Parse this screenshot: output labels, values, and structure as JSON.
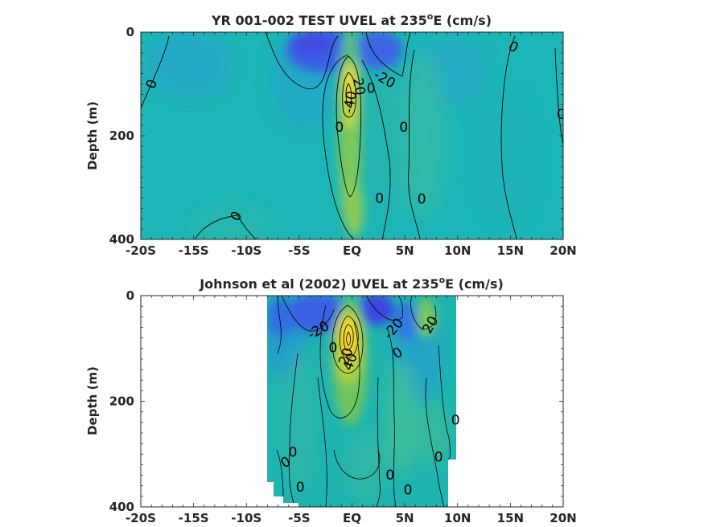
{
  "colors": {
    "background": "#1cb6b6",
    "strong_westward": "#3a4fe6",
    "moderate_westward": "#2f8ae0",
    "moderate_eastward": "#77c45a",
    "strong_eastward": "#f5e02a",
    "frame": "#262626"
  },
  "chart_data": [
    {
      "type": "heatmap",
      "title": "YR 001-002 TEST UVEL at 235",
      "title_sup": "o",
      "title_tail": "E (cm/s)",
      "xlabel": "",
      "ylabel": "Depth (m)",
      "xlim": [
        -20,
        20
      ],
      "ylim": [
        400,
        0
      ],
      "x_ticks": [
        -20,
        -15,
        -10,
        -5,
        0,
        5,
        10,
        15,
        20
      ],
      "x_tick_labels": [
        "-20S",
        "-15S",
        "-10S",
        "-5S",
        "EQ",
        "5N",
        "10N",
        "15N",
        "20N"
      ],
      "y_ticks": [
        0,
        200,
        400
      ],
      "y_tick_labels": [
        "0",
        "200",
        "400"
      ],
      "data_extent": [
        -20,
        20
      ],
      "contour_labels": [
        {
          "lat": -19,
          "depth": 100,
          "text": "0",
          "rot": -70
        },
        {
          "lat": -11,
          "depth": 355,
          "text": "0",
          "rot": -60
        },
        {
          "lat": -1.2,
          "depth": 183,
          "text": "0",
          "rot": 0
        },
        {
          "lat": -0.2,
          "depth": 135,
          "text": "-40",
          "rot": -80
        },
        {
          "lat": 0.7,
          "depth": 105,
          "text": "20",
          "rot": 80
        },
        {
          "lat": 1.8,
          "depth": 108,
          "text": "0",
          "rot": 0
        },
        {
          "lat": 3.1,
          "depth": 90,
          "text": "-20",
          "rot": 30
        },
        {
          "lat": 4.9,
          "depth": 183,
          "text": "0",
          "rot": 0
        },
        {
          "lat": 2.6,
          "depth": 320,
          "text": "0",
          "rot": 0
        },
        {
          "lat": 6.6,
          "depth": 322,
          "text": "0",
          "rot": 0
        },
        {
          "lat": 15.3,
          "depth": 28,
          "text": "0",
          "rot": 30
        },
        {
          "lat": 19.8,
          "depth": 158,
          "text": "0",
          "rot": 0
        }
      ]
    },
    {
      "type": "heatmap",
      "title": "Johnson et al (2002) UVEL at 235",
      "title_sup": "o",
      "title_tail": "E (cm/s)",
      "xlabel": "",
      "ylabel": "Depth (m)",
      "xlim": [
        -20,
        20
      ],
      "ylim": [
        400,
        0
      ],
      "x_ticks": [
        -20,
        -15,
        -10,
        -5,
        0,
        5,
        10,
        15,
        20
      ],
      "x_tick_labels": [
        "-20S",
        "-15S",
        "-10S",
        "-5S",
        "EQ",
        "5N",
        "10N",
        "15N",
        "20N"
      ],
      "y_ticks": [
        0,
        200,
        400
      ],
      "y_tick_labels": [
        "0",
        "200",
        "400"
      ],
      "data_extent": [
        -8,
        10
      ],
      "contour_labels": [
        {
          "lat": -3.2,
          "depth": 65,
          "text": "-20",
          "rot": -30
        },
        {
          "lat": -1.8,
          "depth": 98,
          "text": "0",
          "rot": 0
        },
        {
          "lat": -0.6,
          "depth": 115,
          "text": "20",
          "rot": -70
        },
        {
          "lat": -0.2,
          "depth": 125,
          "text": "40",
          "rot": -70
        },
        {
          "lat": 3.9,
          "depth": 62,
          "text": "-20",
          "rot": -50
        },
        {
          "lat": 4.3,
          "depth": 108,
          "text": "0",
          "rot": -30
        },
        {
          "lat": 7.4,
          "depth": 55,
          "text": "20",
          "rot": -60
        },
        {
          "lat": 9.8,
          "depth": 235,
          "text": "0",
          "rot": 0
        },
        {
          "lat": -6.3,
          "depth": 315,
          "text": "0",
          "rot": -30
        },
        {
          "lat": -5.6,
          "depth": 296,
          "text": "0",
          "rot": 0
        },
        {
          "lat": -4.9,
          "depth": 362,
          "text": "0",
          "rot": 0
        },
        {
          "lat": 3.6,
          "depth": 339,
          "text": "0",
          "rot": 0
        },
        {
          "lat": 5.3,
          "depth": 367,
          "text": "0",
          "rot": 0
        },
        {
          "lat": 8.2,
          "depth": 305,
          "text": "0",
          "rot": 0
        }
      ]
    }
  ]
}
